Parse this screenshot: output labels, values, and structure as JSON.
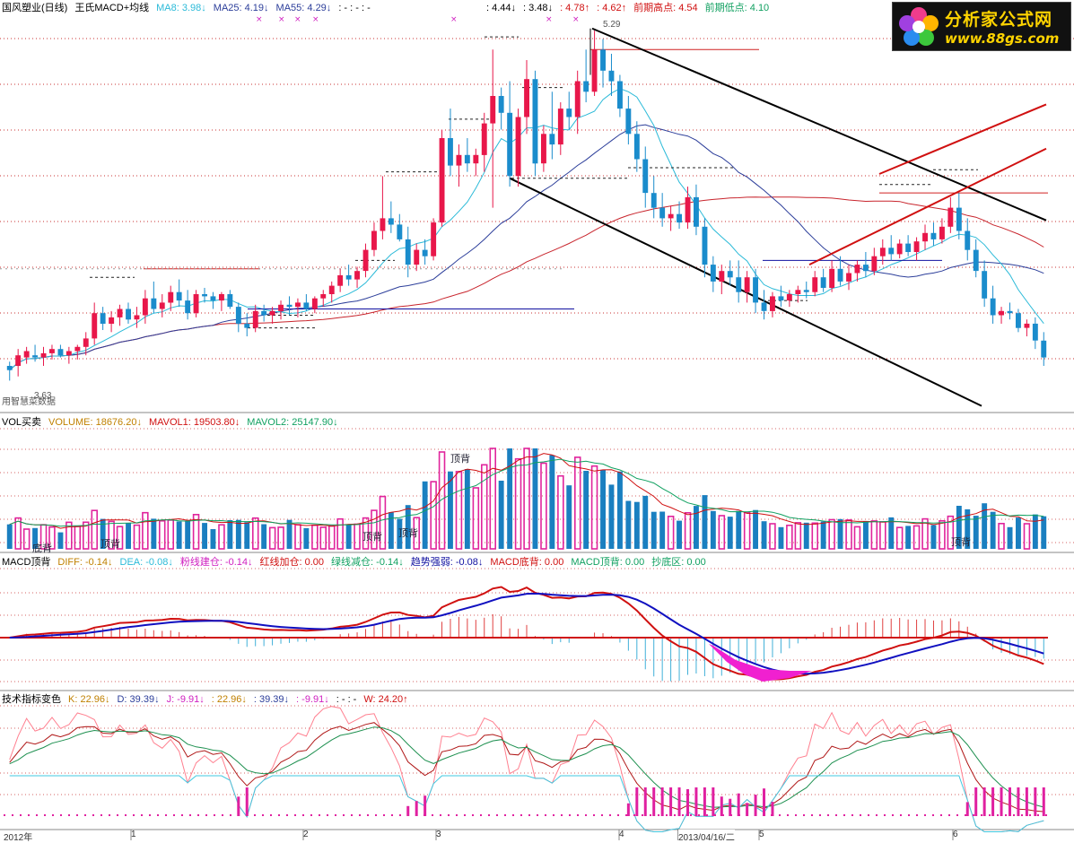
{
  "colors": {
    "up": "#e8174a",
    "down": "#1a8ccc",
    "ma8": "#2bbad8",
    "ma25": "#2c3e9a",
    "ma55": "#c8242c",
    "vol_up": "#e0249c",
    "vol_down": "#1a7fc0",
    "diff": "#d01010",
    "dea": "#1010c0",
    "k": "#b01818",
    "d": "#1e9050",
    "j": "#40c8e0"
  },
  "price_panel": {
    "name": "国风塑业(日线)",
    "indicator": "王氏MACD+均线",
    "ma8": "MA8: 3.98↓",
    "ma25": "MA25: 4.19↓",
    "ma55": "MA55: 4.29↓",
    "dash": ": - : - : -",
    "v1": ": 4.44↓",
    "v2": ": 3.48↓",
    "v3": ": 4.78↑",
    "v4": ": 4.62↑",
    "prev_high": "前期高点: 4.54",
    "prev_low": "前期低点: 4.10",
    "peak_label": "5.29",
    "low_label": "3.63",
    "bottom_left_text": "用智慧菜数据"
  },
  "vol_panel": {
    "name": "VOL买卖",
    "volume": "VOLUME: 18676.20↓",
    "mavol1": "MAVOL1: 19503.80↓",
    "mavol2": "MAVOL2: 25147.90↓",
    "annotations": [
      "顶背",
      "顶背",
      "顶背",
      "顶背",
      "底背",
      "顶背"
    ]
  },
  "macd_panel": {
    "name": "MACD顶背",
    "diff": "DIFF: -0.14↓",
    "dea": "DEA: -0.08↓",
    "pink": "粉线建仓: -0.14↓",
    "red_add": "红线加仓: 0.00",
    "green_cut": "绿线减仓: -0.14↓",
    "trend": "趋势强弱: -0.08↓",
    "bottom_div": "MACD底背: 0.00",
    "top_div": "MACD顶背: 0.00",
    "bottom_zone": "抄底区: 0.00"
  },
  "kdj_panel": {
    "name": "技术指标变色",
    "k": "K: 22.96↓",
    "d": "D: 39.39↓",
    "j": "J: -9.91↓",
    "v1": ": 22.96↓",
    "v2": ": 39.39↓",
    "v3": ": -9.91↓",
    "dash": ": - : -",
    "w": "W: 24.20↑"
  },
  "time_axis": [
    "2012年",
    "1",
    "2",
    "3",
    "4",
    "2013/04/16/二",
    "5",
    "6"
  ],
  "logo": {
    "title": "分析家公式网",
    "url": "www.88gs.com"
  },
  "chart_data": {
    "type": "candlestick",
    "title": "国风塑业(日线)",
    "price_range": [
      3.5,
      5.35
    ],
    "candles": [
      [
        3.7,
        3.72,
        3.63,
        3.68
      ],
      [
        3.7,
        3.78,
        3.65,
        3.75
      ],
      [
        3.74,
        3.79,
        3.71,
        3.77
      ],
      [
        3.75,
        3.8,
        3.72,
        3.74
      ],
      [
        3.74,
        3.79,
        3.7,
        3.76
      ],
      [
        3.76,
        3.8,
        3.73,
        3.78
      ],
      [
        3.78,
        3.8,
        3.74,
        3.75
      ],
      [
        3.75,
        3.79,
        3.71,
        3.77
      ],
      [
        3.77,
        3.8,
        3.73,
        3.79
      ],
      [
        3.79,
        3.86,
        3.75,
        3.83
      ],
      [
        3.83,
        4.0,
        3.8,
        3.95
      ],
      [
        3.95,
        3.98,
        3.87,
        3.9
      ],
      [
        3.9,
        3.96,
        3.86,
        3.93
      ],
      [
        3.93,
        3.99,
        3.89,
        3.97
      ],
      [
        3.97,
        4.0,
        3.9,
        3.92
      ],
      [
        3.92,
        3.98,
        3.88,
        3.94
      ],
      [
        3.94,
        4.06,
        3.9,
        4.02
      ],
      [
        4.02,
        4.1,
        3.95,
        3.97
      ],
      [
        3.97,
        4.04,
        3.93,
        4.0
      ],
      [
        4.0,
        4.08,
        3.96,
        4.05
      ],
      [
        4.05,
        4.11,
        3.98,
        4.01
      ],
      [
        4.01,
        4.06,
        3.92,
        3.95
      ],
      [
        3.95,
        4.06,
        3.93,
        4.04
      ],
      [
        4.04,
        4.07,
        4.0,
        4.03
      ],
      [
        4.03,
        4.05,
        3.97,
        4.01
      ],
      [
        4.01,
        4.05,
        3.96,
        4.04
      ],
      [
        4.04,
        4.06,
        3.97,
        3.98
      ],
      [
        3.98,
        4.0,
        3.86,
        3.9
      ],
      [
        3.9,
        3.95,
        3.84,
        3.88
      ],
      [
        3.88,
        3.99,
        3.86,
        3.96
      ],
      [
        3.96,
        3.99,
        3.91,
        3.94
      ],
      [
        3.94,
        3.98,
        3.9,
        3.96
      ],
      [
        3.96,
        4.01,
        3.92,
        3.99
      ],
      [
        3.99,
        4.03,
        3.94,
        3.98
      ],
      [
        3.98,
        4.02,
        3.93,
        4.0
      ],
      [
        4.0,
        4.04,
        3.96,
        3.97
      ],
      [
        3.97,
        4.03,
        3.95,
        4.02
      ],
      [
        4.02,
        4.06,
        3.98,
        4.04
      ],
      [
        4.04,
        4.1,
        4.0,
        4.08
      ],
      [
        4.08,
        4.16,
        4.05,
        4.13
      ],
      [
        4.13,
        4.18,
        4.08,
        4.11
      ],
      [
        4.11,
        4.17,
        4.07,
        4.15
      ],
      [
        4.15,
        4.28,
        4.12,
        4.25
      ],
      [
        4.25,
        4.38,
        4.22,
        4.34
      ],
      [
        4.34,
        4.6,
        4.3,
        4.4
      ],
      [
        4.4,
        4.48,
        4.33,
        4.37
      ],
      [
        4.37,
        4.42,
        4.29,
        4.3
      ],
      [
        4.3,
        4.36,
        4.12,
        4.18
      ],
      [
        4.18,
        4.28,
        4.15,
        4.25
      ],
      [
        4.25,
        4.3,
        4.18,
        4.22
      ],
      [
        4.22,
        4.4,
        4.2,
        4.38
      ],
      [
        4.38,
        4.82,
        4.36,
        4.78
      ],
      [
        4.78,
        4.92,
        4.6,
        4.65
      ],
      [
        4.65,
        4.75,
        4.55,
        4.7
      ],
      [
        4.7,
        4.78,
        4.62,
        4.66
      ],
      [
        4.66,
        4.73,
        4.6,
        4.7
      ],
      [
        4.7,
        4.9,
        4.62,
        4.85
      ],
      [
        4.85,
        5.2,
        4.45,
        4.98
      ],
      [
        4.98,
        5.02,
        4.82,
        4.9
      ],
      [
        4.9,
        5.05,
        4.55,
        4.6
      ],
      [
        4.6,
        4.92,
        4.55,
        4.88
      ],
      [
        4.88,
        5.15,
        4.8,
        5.06
      ],
      [
        5.06,
        5.1,
        4.6,
        4.66
      ],
      [
        4.66,
        4.84,
        4.62,
        4.8
      ],
      [
        4.8,
        5.0,
        4.68,
        4.75
      ],
      [
        4.75,
        4.95,
        4.7,
        4.92
      ],
      [
        4.92,
        5.0,
        4.82,
        4.88
      ],
      [
        4.88,
        5.1,
        4.8,
        5.05
      ],
      [
        5.05,
        5.2,
        4.95,
        5.0
      ],
      [
        5.0,
        5.29,
        4.98,
        5.2
      ],
      [
        5.2,
        5.25,
        5.02,
        5.1
      ],
      [
        5.1,
        5.18,
        4.98,
        5.05
      ],
      [
        5.05,
        5.08,
        4.88,
        4.92
      ],
      [
        4.92,
        4.98,
        4.75,
        4.8
      ],
      [
        4.8,
        4.86,
        4.62,
        4.68
      ],
      [
        4.68,
        4.74,
        4.45,
        4.52
      ],
      [
        4.52,
        4.6,
        4.4,
        4.45
      ],
      [
        4.45,
        4.52,
        4.36,
        4.4
      ],
      [
        4.4,
        4.46,
        4.34,
        4.42
      ],
      [
        4.42,
        4.48,
        4.35,
        4.38
      ],
      [
        4.38,
        4.55,
        4.35,
        4.5
      ],
      [
        4.5,
        4.56,
        4.32,
        4.36
      ],
      [
        4.36,
        4.4,
        4.12,
        4.18
      ],
      [
        4.18,
        4.22,
        4.05,
        4.1
      ],
      [
        4.1,
        4.18,
        4.04,
        4.15
      ],
      [
        4.15,
        4.2,
        4.08,
        4.12
      ],
      [
        4.12,
        4.2,
        4.0,
        4.05
      ],
      [
        4.05,
        4.15,
        4.0,
        4.12
      ],
      [
        4.12,
        4.16,
        3.95,
        4.0
      ],
      [
        4.0,
        4.06,
        3.92,
        3.96
      ],
      [
        3.96,
        4.05,
        3.93,
        4.03
      ],
      [
        4.03,
        4.08,
        3.98,
        4.01
      ],
      [
        4.01,
        4.06,
        3.98,
        4.04
      ],
      [
        4.04,
        4.08,
        4.0,
        4.06
      ],
      [
        4.06,
        4.1,
        4.02,
        4.05
      ],
      [
        4.05,
        4.15,
        4.03,
        4.12
      ],
      [
        4.12,
        4.16,
        4.05,
        4.07
      ],
      [
        4.07,
        4.2,
        4.05,
        4.16
      ],
      [
        4.16,
        4.22,
        4.08,
        4.1
      ],
      [
        4.1,
        4.18,
        4.06,
        4.14
      ],
      [
        4.14,
        4.2,
        4.1,
        4.18
      ],
      [
        4.18,
        4.24,
        4.12,
        4.15
      ],
      [
        4.15,
        4.26,
        4.13,
        4.22
      ],
      [
        4.22,
        4.3,
        4.18,
        4.26
      ],
      [
        4.26,
        4.32,
        4.2,
        4.23
      ],
      [
        4.23,
        4.3,
        4.21,
        4.28
      ],
      [
        4.28,
        4.32,
        4.22,
        4.24
      ],
      [
        4.24,
        4.31,
        4.2,
        4.29
      ],
      [
        4.29,
        4.37,
        4.25,
        4.33
      ],
      [
        4.33,
        4.38,
        4.27,
        4.3
      ],
      [
        4.3,
        4.4,
        4.28,
        4.36
      ],
      [
        4.36,
        4.5,
        4.33,
        4.45
      ],
      [
        4.45,
        4.52,
        4.3,
        4.34
      ],
      [
        4.34,
        4.4,
        4.2,
        4.25
      ],
      [
        4.25,
        4.3,
        4.12,
        4.15
      ],
      [
        4.15,
        4.2,
        3.98,
        4.02
      ],
      [
        4.02,
        4.08,
        3.9,
        3.94
      ],
      [
        3.94,
        3.98,
        3.9,
        3.96
      ],
      [
        3.96,
        4.0,
        3.92,
        3.95
      ],
      [
        3.95,
        3.97,
        3.86,
        3.88
      ],
      [
        3.88,
        3.92,
        3.84,
        3.9
      ],
      [
        3.9,
        3.93,
        3.78,
        3.82
      ],
      [
        3.82,
        3.86,
        3.7,
        3.74
      ]
    ],
    "series_lines": [
      "MA8",
      "MA25",
      "MA55"
    ]
  }
}
